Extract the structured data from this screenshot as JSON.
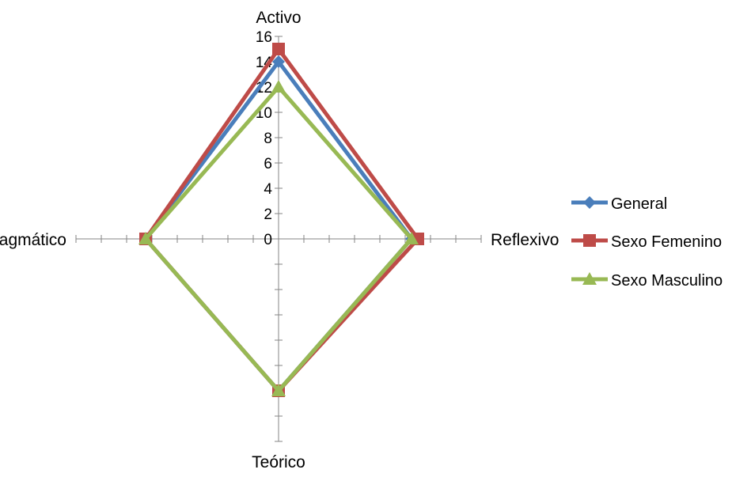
{
  "chart_data": {
    "type": "radar",
    "axes": [
      "Activo",
      "Reflexivo",
      "Teórico",
      "Pragmático"
    ],
    "rlim": [
      0,
      16
    ],
    "tick_labels": [
      "0",
      "2",
      "4",
      "6",
      "8",
      "10",
      "12",
      "14",
      "16"
    ],
    "grid": false,
    "legend_position": "right",
    "series": [
      {
        "name": "General",
        "color": "#4a7ebb",
        "marker": "diamond",
        "values": [
          14,
          10.5,
          12,
          10.5
        ]
      },
      {
        "name": "Sexo Femenino",
        "color": "#be4b48",
        "marker": "square",
        "values": [
          15,
          11,
          12,
          10.5
        ]
      },
      {
        "name": "Sexo Masculino",
        "color": "#98b954",
        "marker": "triangle",
        "values": [
          12,
          10.5,
          12,
          10.5
        ]
      }
    ]
  }
}
